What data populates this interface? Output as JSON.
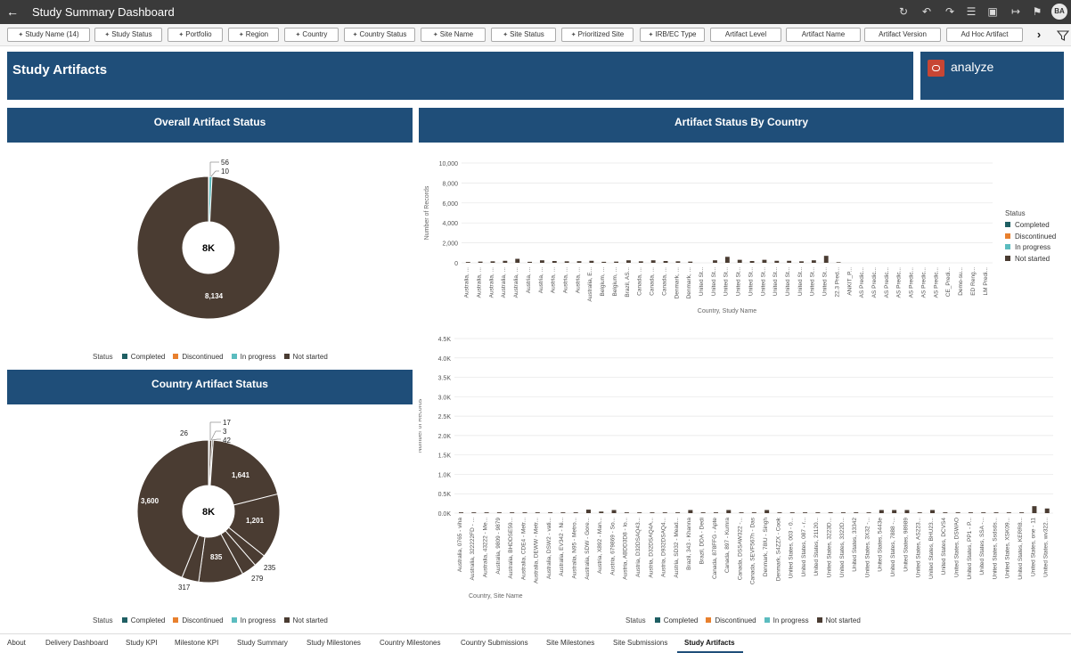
{
  "app": {
    "title": "Study Summary Dashboard",
    "avatar": "BA"
  },
  "toolbar_icons": [
    "undo-circle-icon",
    "undo-icon",
    "redo-icon",
    "comment-icon",
    "data-icon",
    "present-icon",
    "export-icon",
    "bookmark-icon"
  ],
  "filters": [
    "Study Name (14)",
    "Study Status",
    "Portfolio",
    "Region",
    "Country",
    "Country Status",
    "Site Name",
    "Site Status",
    "Prioritized Site",
    "IRB/EC Type",
    "Artifact Level",
    "Artifact Name",
    "Artifact Version",
    "Ad Hoc Artifact"
  ],
  "header": {
    "title": "Study Artifacts",
    "logo_text": "analyze",
    "logo_color": "#c74634",
    "banner_color": "#1f4e79"
  },
  "overall": {
    "title": "Overall Artifact Status",
    "center_label": "8K",
    "labels": {
      "main": "8,134",
      "a": "56",
      "b": "10"
    },
    "legend_title": "Status",
    "legend": [
      "Completed",
      "Discontinued",
      "In progress",
      "Not started"
    ]
  },
  "country_status": {
    "title": "Country Artifact Status",
    "center_label": "8K",
    "labels": [
      "17",
      "3",
      "42",
      "26",
      "1,641",
      "1,201",
      "235",
      "279",
      "835",
      "317",
      "3,600"
    ],
    "legend_title": "Status",
    "legend": [
      "Completed",
      "Discontinued",
      "In progress",
      "Not started"
    ]
  },
  "by_country": {
    "title": "Artifact Status By Country",
    "top_ylabel": "Number of Records",
    "top_xlabel": "Country, Study Name",
    "top_yticks": [
      "10,000",
      "8,000",
      "6,000",
      "4,000",
      "2,000",
      "0"
    ],
    "top_xticks": [
      "Australia, ...",
      "Australia, ...",
      "Australia, ...",
      "Australia, ...",
      "Australia, ...",
      "Austria, ...",
      "Austria, ...",
      "Austria, ...",
      "Austria, ...",
      "Austria, ...",
      "Australia, E...",
      "Belgium, ...",
      "Belgium, ...",
      "Brazil, AS...",
      "Canada, ...",
      "Canada, ...",
      "Canada, ...",
      "Denmark, ...",
      "Denmark, ...",
      "United St...",
      "United St...",
      "United St...",
      "United St...",
      "United St...",
      "United St...",
      "United St...",
      "United St...",
      "United St...",
      "United St...",
      "United St...",
      "22.3 Pred...",
      "ANKIT_P...",
      "AS Predic...",
      "AS Predic...",
      "AS Predic...",
      "AS Predic...",
      "AS Predic...",
      "AS Predic...",
      "AS Predic...",
      "CE_Predi...",
      "Demo-su...",
      "ED Reng...",
      "LM Predi..."
    ],
    "bottom_ylabel": "Number of Records",
    "bottom_xlabel": "Country, Site Name",
    "bottom_yticks": [
      "4.5K",
      "4.0K",
      "3.5K",
      "3.0K",
      "2.5K",
      "2.0K",
      "1.5K",
      "1.0K",
      "0.5K",
      "0.0K"
    ],
    "bottom_xticks": [
      "Australia, 0765 - viha",
      "Australia, 322222FD - ...",
      "Australia, 43222 - Me...",
      "Australia, 9809 - 9879",
      "Australia, BHDDSE59...",
      "Australia, CDE4 - Metr...",
      "Australia, DEWW - Metr...",
      "Australia, DSW2 - vati...",
      "Australia, EV342 - Ni...",
      "Australia, N95 - Metro...",
      "Australia, SDW - Gore...",
      "Austria, X892 - Man...",
      "Austria, 679869 - So...",
      "Austria, ABDD3D8 - lo...",
      "Austria, D32DSAQ43...",
      "Austria, D32DSAQ4A...",
      "Austria, D932DSAQ4...",
      "Austria, SD32 - Mead...",
      "Brazil, 343 - Khanna",
      "Brazil, DDA - Dedi",
      "Canada, 878FFG - Apte",
      "Canada, 897 - Kumra",
      "Canada, DSSAW322 -...",
      "Canada, SEVF567h - Das",
      "Denmark, 78IU - Singh",
      "Denmark, S4ZZX - Cook",
      "United States, 003 - 0...",
      "United States, 087 - r...",
      "United States, 21120...",
      "United States, 3223D...",
      "United States, 3322D...",
      "United States, 33342",
      "United States, 3X32 -...",
      "United States, 5443e",
      "United States, 7888 -...",
      "United States, 98989",
      "United States, AS223...",
      "United States, BHU23...",
      "United States, DCVS4",
      "United States, DSWAO",
      "United States, PP1 - P...",
      "United States, SSA -...",
      "United States, Ssdsds...",
      "United States, XSK09...",
      "United States, KERR8...",
      "United States, one - 11",
      "United States, wv322..."
    ],
    "legend_title": "Status",
    "legend": [
      "Completed",
      "Discontinued",
      "In progress",
      "Not started"
    ]
  },
  "status_colors": {
    "Completed": "#1f5f63",
    "Discontinued": "#e8802e",
    "In progress": "#5bbcbf",
    "Not started": "#4a3c32"
  },
  "chart_data": [
    {
      "type": "pie",
      "title": "Overall Artifact Status",
      "categories": [
        "Completed",
        "Discontinued",
        "In progress",
        "Not started"
      ],
      "values": [
        10,
        0,
        56,
        8134
      ],
      "center_label": "8K"
    },
    {
      "type": "pie",
      "title": "Country Artifact Status",
      "categories": [
        "Completed",
        "In progress",
        "Not started",
        "Not started",
        "Not started",
        "Not started",
        "Not started",
        "Not started",
        "Not started",
        "Not started",
        "Not started"
      ],
      "values": [
        17,
        3,
        42,
        26,
        1641,
        1201,
        235,
        279,
        835,
        317,
        3600
      ],
      "center_label": "8K"
    },
    {
      "type": "bar",
      "title": "Artifact Status By Country",
      "xlabel": "Country, Study Name",
      "ylabel": "Number of Records",
      "ylim": [
        0,
        10000
      ],
      "series": [
        {
          "name": "Not started",
          "values": [
            80,
            120,
            150,
            200,
            400,
            100,
            250,
            180,
            150,
            160,
            200,
            100,
            120,
            250,
            150,
            250,
            180,
            150,
            120,
            0,
            250,
            600,
            300,
            180,
            300,
            200,
            200,
            150,
            250,
            700,
            60,
            0,
            0,
            0,
            0,
            0,
            0,
            0,
            0,
            0,
            0,
            0,
            0
          ]
        }
      ]
    },
    {
      "type": "bar",
      "xlabel": "Country, Site Name",
      "ylabel": "Number of Records",
      "ylim": [
        0,
        4500
      ],
      "series": [
        {
          "name": "Not started",
          "values": [
            20,
            20,
            20,
            20,
            20,
            20,
            20,
            20,
            20,
            20,
            90,
            40,
            80,
            20,
            20,
            20,
            20,
            20,
            80,
            20,
            20,
            80,
            20,
            20,
            80,
            20,
            20,
            20,
            20,
            20,
            20,
            20,
            20,
            80,
            80,
            80,
            20,
            80,
            20,
            20,
            20,
            20,
            20,
            20,
            20,
            180,
            120
          ]
        }
      ]
    }
  ],
  "tabs": [
    "About",
    "Delivery Dashboard",
    "Study KPI",
    "Milestone KPI",
    "Study Summary",
    "Study Milestones",
    "Country Milestones",
    "Country Submissions",
    "Site Milestones",
    "Site Submissions",
    "Study Artifacts"
  ],
  "active_tab": "Study Artifacts"
}
